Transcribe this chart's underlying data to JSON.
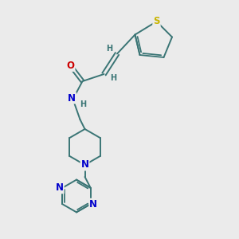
{
  "background_color": "#ebebeb",
  "bond_color": "#3a7575",
  "atom_colors": {
    "S": "#c8b400",
    "O": "#cc0000",
    "N": "#0000cc",
    "C": "#3a7575",
    "H": "#3a7575"
  },
  "figsize": [
    3.0,
    3.0
  ],
  "dpi": 100,
  "xlim": [
    0,
    10
  ],
  "ylim": [
    0,
    10
  ]
}
